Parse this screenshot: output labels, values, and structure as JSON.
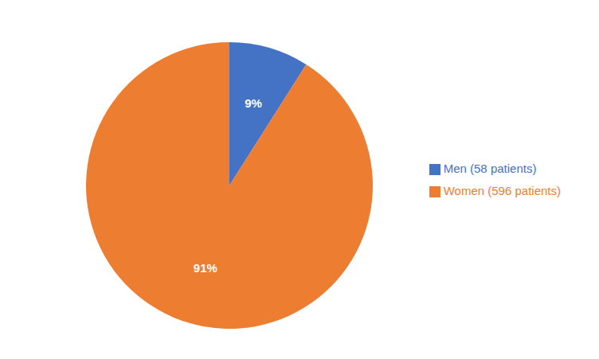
{
  "chart_data": {
    "type": "pie",
    "categories": [
      "Men (58 patients)",
      "Women (596 patients)"
    ],
    "values": [
      9,
      91
    ],
    "value_labels": [
      "9%",
      "91%"
    ],
    "colors": [
      "#4472C4",
      "#ED7D31"
    ],
    "data_labels": true,
    "legend": "right"
  }
}
